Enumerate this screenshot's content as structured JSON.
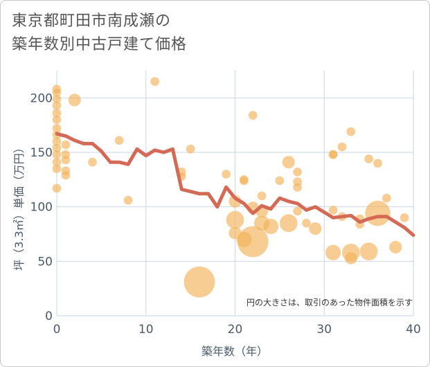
{
  "title": "東京都町田市南成瀬の\n築年数別中古戸建て価格",
  "chart_data": {
    "type": "scatter",
    "xlabel": "築年数（年）",
    "ylabel": "坪（3.3㎡）単価（万円）",
    "xlim": [
      0,
      40
    ],
    "ylim": [
      0,
      225
    ],
    "x_ticks": [
      "0",
      "10",
      "20",
      "30",
      "40"
    ],
    "y_ticks": [
      "0",
      "50",
      "100",
      "150",
      "200"
    ],
    "grid": true,
    "note": "円の大きさは、取引のあった物件面積を示す",
    "colors": {
      "bubble": "#f2b25a",
      "line": "#d46a55",
      "grid": "#c9d6e3"
    },
    "bubbles": [
      {
        "x": 0,
        "y": 208,
        "size": 1
      },
      {
        "x": 0,
        "y": 205,
        "size": 1
      },
      {
        "x": 0,
        "y": 199,
        "size": 1
      },
      {
        "x": 0,
        "y": 193,
        "size": 1
      },
      {
        "x": 0,
        "y": 186,
        "size": 1
      },
      {
        "x": 0,
        "y": 180,
        "size": 1
      },
      {
        "x": 0,
        "y": 172,
        "size": 1
      },
      {
        "x": 0,
        "y": 166,
        "size": 1
      },
      {
        "x": 0,
        "y": 160,
        "size": 1
      },
      {
        "x": 0,
        "y": 154,
        "size": 1
      },
      {
        "x": 0,
        "y": 148,
        "size": 1
      },
      {
        "x": 0,
        "y": 141,
        "size": 1
      },
      {
        "x": 0,
        "y": 135,
        "size": 1
      },
      {
        "x": 0,
        "y": 117,
        "size": 1
      },
      {
        "x": 1,
        "y": 157,
        "size": 1
      },
      {
        "x": 1,
        "y": 148,
        "size": 1
      },
      {
        "x": 1,
        "y": 143,
        "size": 1
      },
      {
        "x": 1,
        "y": 133,
        "size": 1
      },
      {
        "x": 1,
        "y": 129,
        "size": 1
      },
      {
        "x": 2,
        "y": 198,
        "size": 2
      },
      {
        "x": 4,
        "y": 141,
        "size": 1
      },
      {
        "x": 7,
        "y": 161,
        "size": 1
      },
      {
        "x": 8,
        "y": 106,
        "size": 1
      },
      {
        "x": 11,
        "y": 215,
        "size": 1
      },
      {
        "x": 14,
        "y": 132,
        "size": 1
      },
      {
        "x": 14,
        "y": 128,
        "size": 1
      },
      {
        "x": 15,
        "y": 153,
        "size": 1
      },
      {
        "x": 16,
        "y": 31,
        "size": 12
      },
      {
        "x": 19,
        "y": 130,
        "size": 1
      },
      {
        "x": 20,
        "y": 105,
        "size": 2
      },
      {
        "x": 20,
        "y": 88,
        "size": 4
      },
      {
        "x": 20,
        "y": 76,
        "size": 2
      },
      {
        "x": 21,
        "y": 125,
        "size": 1
      },
      {
        "x": 21,
        "y": 124,
        "size": 1
      },
      {
        "x": 21,
        "y": 70,
        "size": 3
      },
      {
        "x": 22,
        "y": 184,
        "size": 1
      },
      {
        "x": 22,
        "y": 99,
        "size": 2
      },
      {
        "x": 22,
        "y": 68,
        "size": 12
      },
      {
        "x": 23,
        "y": 110,
        "size": 1
      },
      {
        "x": 23,
        "y": 96,
        "size": 2
      },
      {
        "x": 23,
        "y": 85,
        "size": 3
      },
      {
        "x": 24,
        "y": 82,
        "size": 3
      },
      {
        "x": 25,
        "y": 124,
        "size": 1
      },
      {
        "x": 26,
        "y": 141,
        "size": 2
      },
      {
        "x": 26,
        "y": 85,
        "size": 4
      },
      {
        "x": 27,
        "y": 132,
        "size": 1
      },
      {
        "x": 27,
        "y": 123,
        "size": 1
      },
      {
        "x": 27,
        "y": 118,
        "size": 1
      },
      {
        "x": 27,
        "y": 96,
        "size": 1
      },
      {
        "x": 28,
        "y": 85,
        "size": 1
      },
      {
        "x": 29,
        "y": 80,
        "size": 2
      },
      {
        "x": 31,
        "y": 148,
        "size": 1
      },
      {
        "x": 31,
        "y": 148,
        "size": 1
      },
      {
        "x": 31,
        "y": 97,
        "size": 1
      },
      {
        "x": 31,
        "y": 58,
        "size": 3
      },
      {
        "x": 32,
        "y": 155,
        "size": 1
      },
      {
        "x": 32,
        "y": 91,
        "size": 1
      },
      {
        "x": 33,
        "y": 169,
        "size": 1
      },
      {
        "x": 33,
        "y": 58,
        "size": 4
      },
      {
        "x": 33,
        "y": 53,
        "size": 2
      },
      {
        "x": 34,
        "y": 84,
        "size": 1
      },
      {
        "x": 34,
        "y": 89,
        "size": 1
      },
      {
        "x": 35,
        "y": 144,
        "size": 1
      },
      {
        "x": 35,
        "y": 59,
        "size": 4
      },
      {
        "x": 36,
        "y": 140,
        "size": 1
      },
      {
        "x": 36,
        "y": 94,
        "size": 8
      },
      {
        "x": 37,
        "y": 108,
        "size": 1
      },
      {
        "x": 38,
        "y": 63,
        "size": 2
      },
      {
        "x": 39,
        "y": 90,
        "size": 1
      }
    ],
    "line": {
      "x": [
        0,
        1,
        2,
        3,
        4,
        5,
        6,
        7,
        8,
        9,
        10,
        11,
        12,
        13,
        14,
        15,
        16,
        17,
        18,
        19,
        20,
        21,
        22,
        23,
        24,
        25,
        26,
        27,
        28,
        29,
        30,
        31,
        32,
        33,
        34,
        35,
        36,
        37,
        38,
        39,
        40
      ],
      "y": [
        167,
        165,
        161,
        158,
        158,
        151,
        141,
        141,
        139,
        153,
        147,
        152,
        150,
        153,
        116,
        114,
        112,
        112,
        100,
        118,
        108,
        103,
        94,
        101,
        98,
        108,
        105,
        103,
        97,
        100,
        95,
        90,
        91,
        92,
        86,
        89,
        91,
        91,
        86,
        81,
        74
      ]
    }
  }
}
